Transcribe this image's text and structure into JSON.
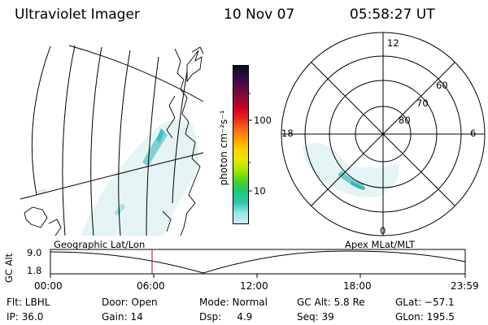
{
  "header": {
    "instrument": "Ultraviolet Imager",
    "date": "10 Nov 07",
    "time": "05:58:27 UT"
  },
  "colorbar": {
    "unit_label": "photon cm⁻²s⁻¹",
    "ticks": [
      "100",
      "10"
    ],
    "colors": [
      "#0a0a28",
      "#2c0a3c",
      "#5a0a46",
      "#8c0a3c",
      "#c8001e",
      "#e6281e",
      "#ff6414",
      "#ffa000",
      "#ffd200",
      "#e6e600",
      "#a0e600",
      "#46d228",
      "#1ec878",
      "#28c8b4",
      "#96e6e6",
      "#d2f0f0"
    ]
  },
  "polar_plot": {
    "mlt_labels": {
      "top": "12",
      "left": "18",
      "right": "6",
      "bottom": "0"
    },
    "lat_labels": [
      "60",
      "70",
      "80"
    ]
  },
  "timeline": {
    "left_label": "Geographic Lat/Lon",
    "right_label": "Apex MLat/MLT",
    "yaxis_title": "GC Alt",
    "y_ticks": [
      "9.0",
      "1.8"
    ],
    "x_ticks": [
      "00:00",
      "06:00",
      "12:00",
      "18:00",
      "23:59"
    ]
  },
  "status": {
    "flt": "Flt: LBHL",
    "ip": "IP: 36.0",
    "door": "Door: Open",
    "gain": "Gain: 14",
    "mode": "Mode: Normal",
    "dsp": "Dsp:     4.9",
    "gc_alt": "GC Alt: 5.8 Re",
    "seq": "Seq: 39",
    "glat": "GLat: −57.1",
    "glon": "GLon: 195.5"
  }
}
